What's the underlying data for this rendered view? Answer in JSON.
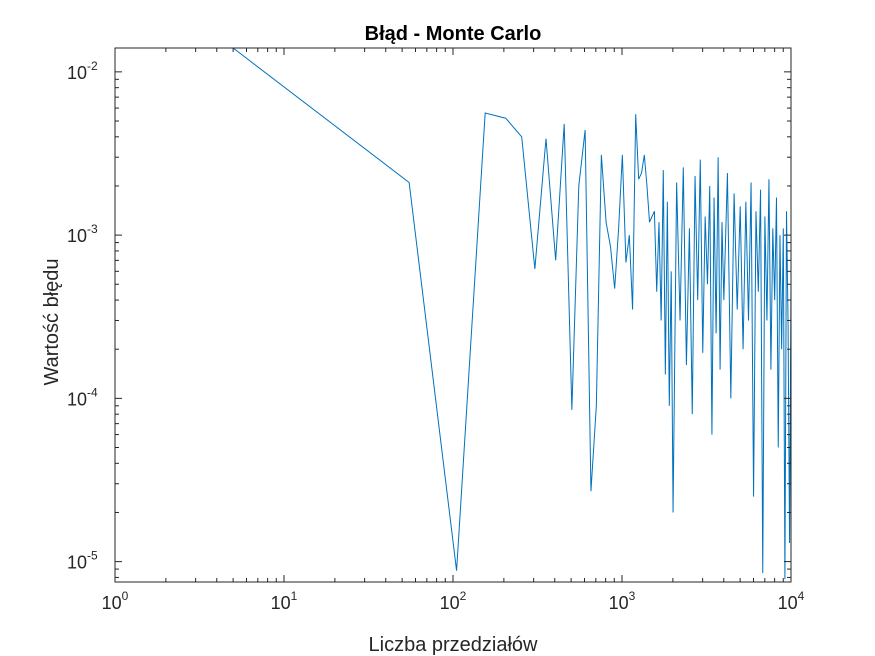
{
  "chart_data": {
    "type": "line",
    "title": "Błąd - Monte Carlo",
    "xlabel": "Liczba przedziałów",
    "ylabel": "Wartość błędu",
    "xscale": "log",
    "yscale": "log",
    "xlim": [
      1,
      10000
    ],
    "ylim": [
      7.5e-06,
      0.014
    ],
    "grid": false,
    "x_ticks": [
      {
        "base": "10",
        "exp": "0",
        "value": 1
      },
      {
        "base": "10",
        "exp": "1",
        "value": 10
      },
      {
        "base": "10",
        "exp": "2",
        "value": 100
      },
      {
        "base": "10",
        "exp": "3",
        "value": 1000
      },
      {
        "base": "10",
        "exp": "4",
        "value": 10000
      }
    ],
    "y_ticks": [
      {
        "base": "10",
        "exp": "-5",
        "value": 1e-05
      },
      {
        "base": "10",
        "exp": "-4",
        "value": 0.0001
      },
      {
        "base": "10",
        "exp": "-3",
        "value": 0.001
      },
      {
        "base": "10",
        "exp": "-2",
        "value": 0.01
      }
    ],
    "series": [
      {
        "color": "#0072BD",
        "x": [
          5,
          55,
          105,
          155,
          205,
          255,
          305,
          355,
          405,
          455,
          505,
          555,
          605,
          655,
          705,
          755,
          805,
          855,
          905,
          955,
          1005,
          1055,
          1105,
          1155,
          1205,
          1255,
          1305,
          1355,
          1405,
          1455,
          1505,
          1555,
          1605,
          1655,
          1705,
          1755,
          1805,
          1855,
          1905,
          1955,
          2005,
          2105,
          2205,
          2305,
          2405,
          2505,
          2605,
          2705,
          2805,
          2905,
          3005,
          3105,
          3205,
          3305,
          3405,
          3505,
          3605,
          3705,
          3805,
          3905,
          4005,
          4205,
          4405,
          4605,
          4805,
          5005,
          5205,
          5405,
          5605,
          5805,
          6005,
          6205,
          6405,
          6605,
          6805,
          7005,
          7205,
          7405,
          7605,
          7805,
          8005,
          8205,
          8405,
          8605,
          8805,
          9005,
          9205,
          9405,
          9605,
          9805,
          10000
        ],
        "y": [
          0.014,
          0.0021,
          8.8e-06,
          0.0056,
          0.0052,
          0.004,
          0.00062,
          0.0039,
          0.0007,
          0.0048,
          8.5e-05,
          0.002,
          0.0044,
          2.7e-05,
          9e-05,
          0.0031,
          0.0012,
          0.00085,
          0.00047,
          0.0011,
          0.0031,
          0.00068,
          0.001,
          0.00035,
          0.0055,
          0.0022,
          0.0024,
          0.0031,
          0.002,
          0.0012,
          0.0013,
          0.0014,
          0.00045,
          0.0012,
          0.0003,
          0.0025,
          0.00014,
          0.0016,
          9e-05,
          0.0006,
          2e-05,
          0.0021,
          0.0003,
          0.0026,
          0.00016,
          0.0011,
          8e-05,
          0.0023,
          0.0004,
          0.0029,
          0.00019,
          0.0013,
          0.0005,
          0.002,
          6e-05,
          0.0017,
          0.00025,
          0.003,
          0.00015,
          0.0012,
          0.0004,
          0.0024,
          0.0001,
          0.0018,
          0.00035,
          0.0015,
          0.0002,
          0.0016,
          0.0003,
          0.0021,
          2.5e-05,
          0.0014,
          0.00045,
          0.0019,
          8.5e-06,
          0.0013,
          0.0003,
          0.0022,
          0.00015,
          0.0011,
          0.0004,
          0.0017,
          5e-05,
          0.001,
          0.0002,
          0.0011,
          7.8e-06,
          0.0014,
          0.0003,
          1.3e-05,
          0.0005
        ]
      }
    ]
  }
}
